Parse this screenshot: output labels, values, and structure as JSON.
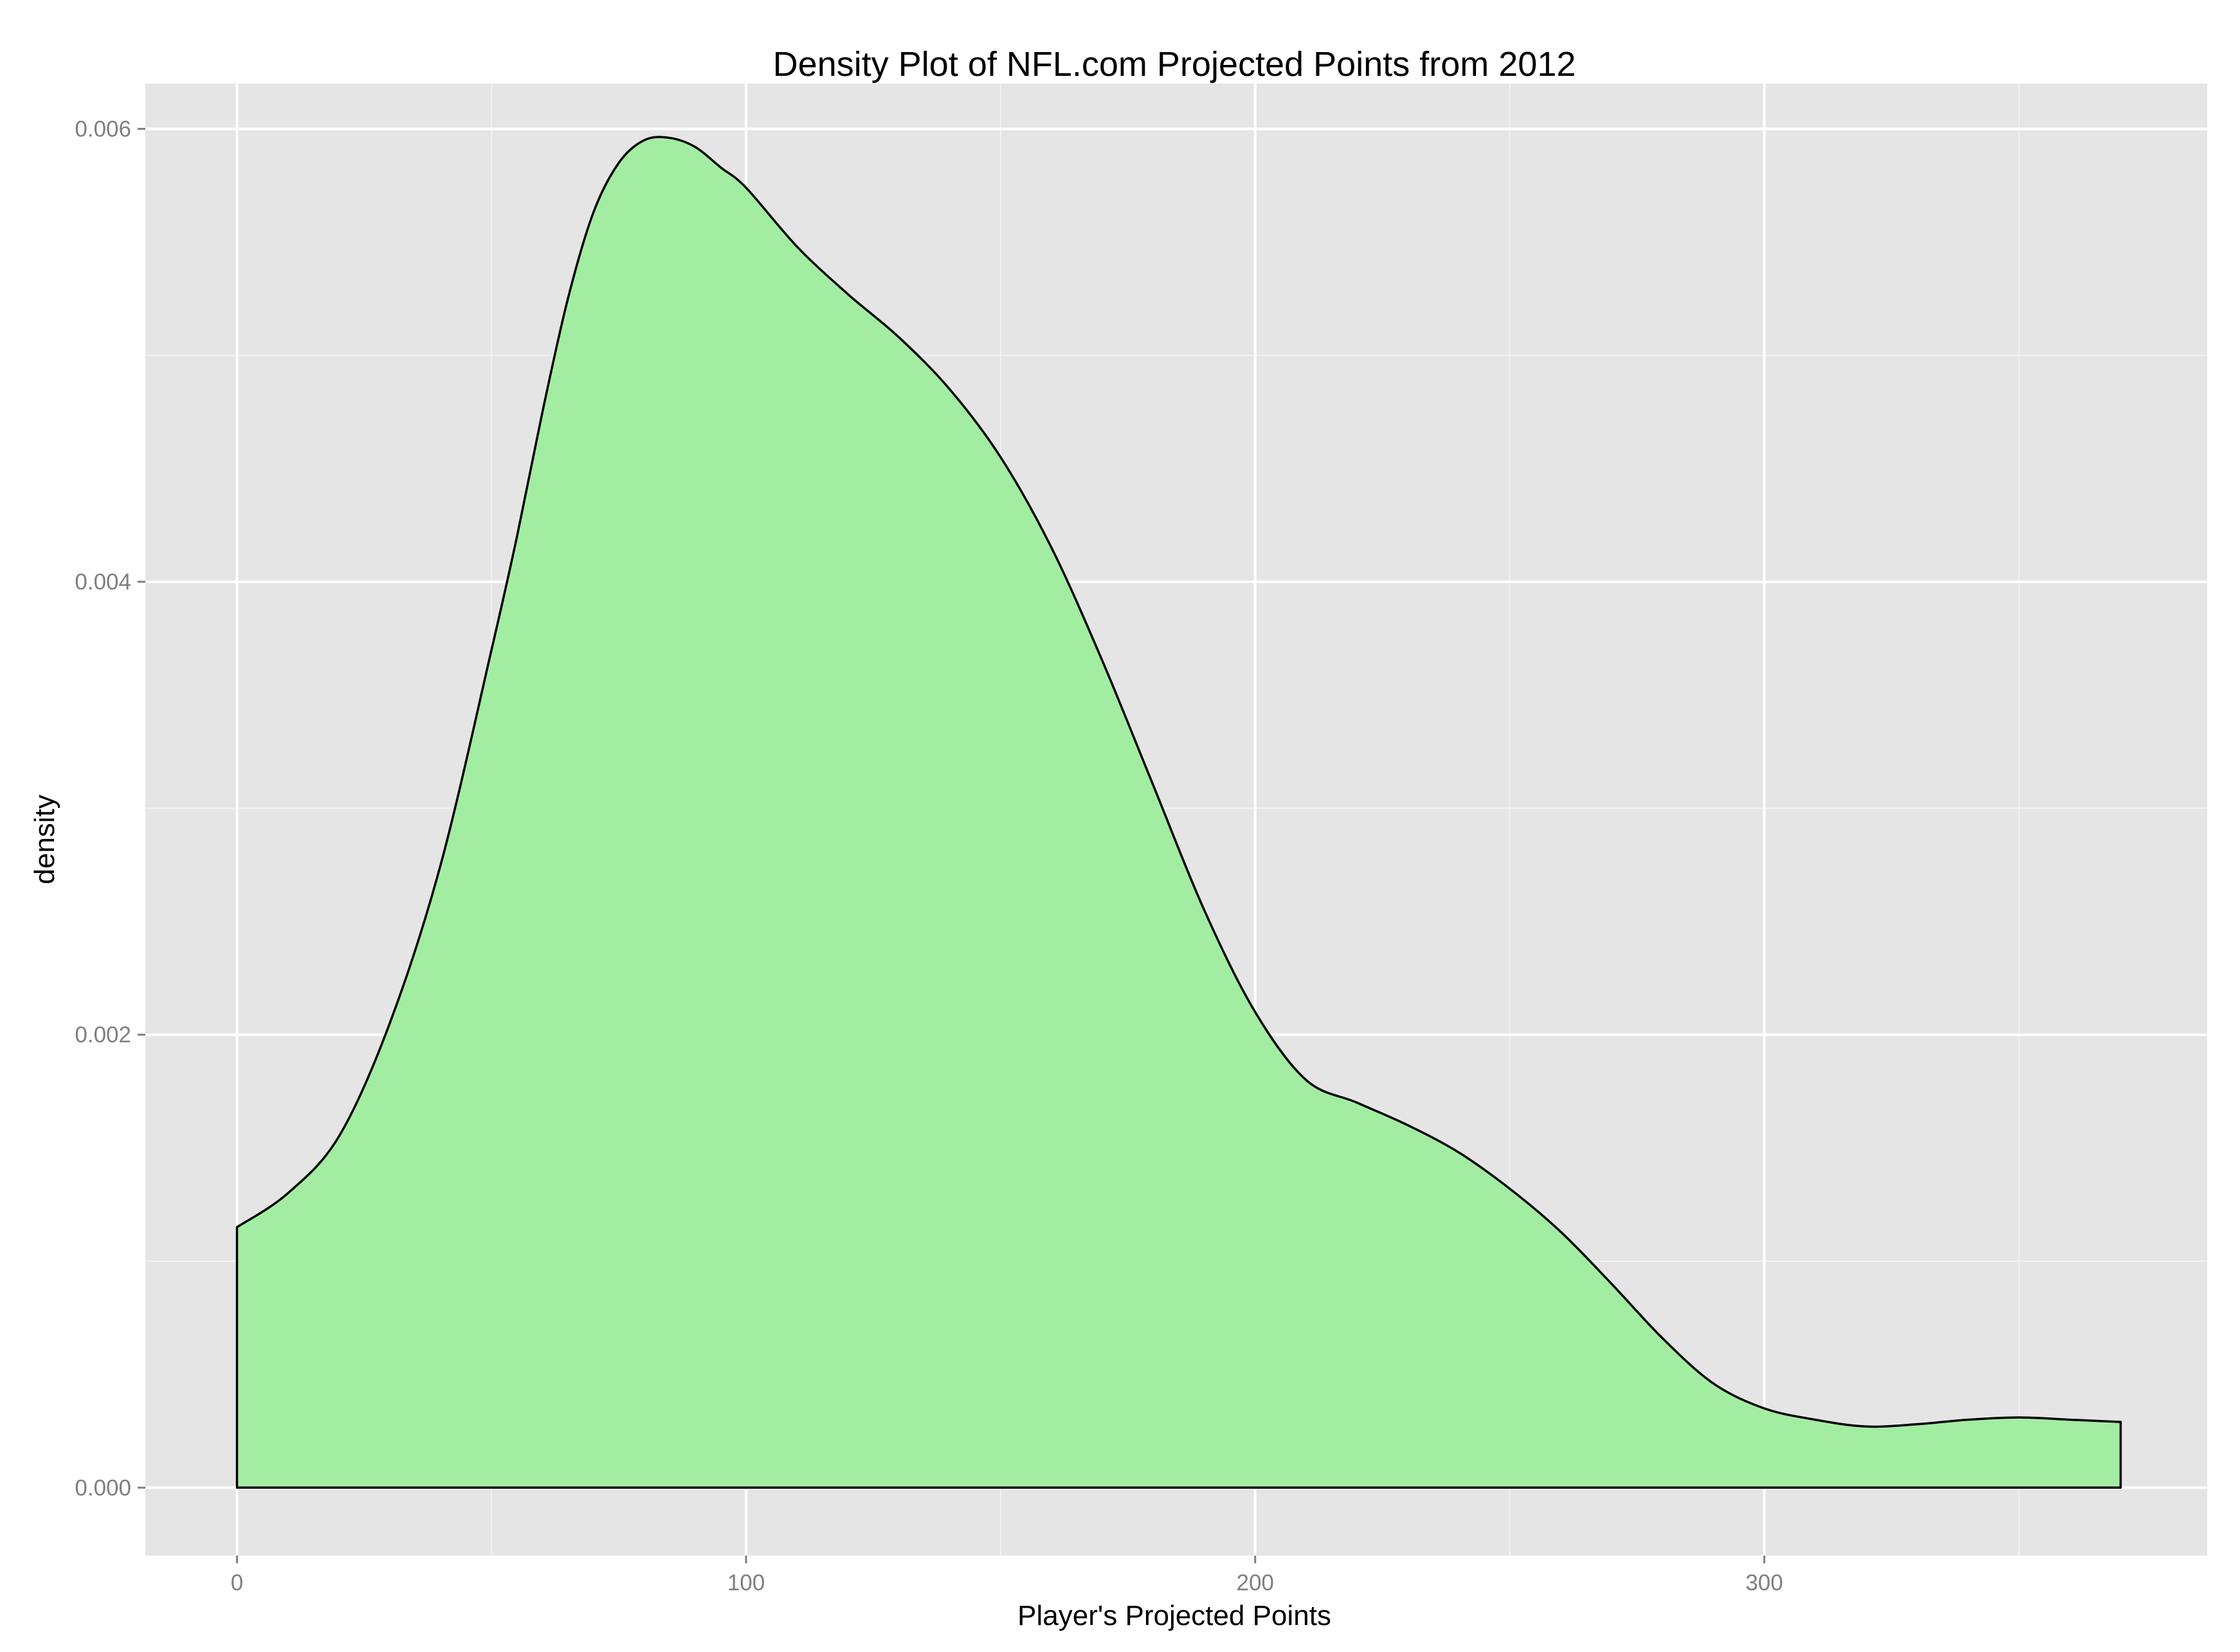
{
  "colors": {
    "panel_background": "#e5e5e5",
    "grid_major": "#ffffff",
    "grid_minor": "#f2f2f2",
    "density_fill": "#a3eda2",
    "density_outline": "#000000",
    "tick_label": "#7f7f7f",
    "tick_mark": "#7f7f7f"
  },
  "chart_data": {
    "type": "area",
    "title": "Density Plot of NFL.com Projected Points from 2012",
    "xlabel": "Player's Projected Points",
    "ylabel": "density",
    "xlim": [
      -18,
      387
    ],
    "ylim": [
      -0.0003,
      0.0062
    ],
    "x_ticks": [
      0,
      100,
      200,
      300
    ],
    "x_tick_labels": [
      "0",
      "100",
      "200",
      "300"
    ],
    "y_ticks": [
      0.0,
      0.002,
      0.004,
      0.006
    ],
    "y_tick_labels": [
      "0.000",
      "0.002",
      "0.004",
      "0.006"
    ],
    "grid": true,
    "legend": "none",
    "series": [
      {
        "x": [
          0,
          10,
          20,
          30,
          40,
          50,
          55,
          60,
          65,
          70,
          75,
          80,
          85,
          90,
          95,
          100,
          110,
          120,
          130,
          140,
          150,
          160,
          170,
          180,
          190,
          200,
          210,
          220,
          230,
          240,
          250,
          260,
          270,
          280,
          290,
          300,
          310,
          320,
          330,
          340,
          350,
          360,
          370
        ],
        "y": [
          0.00115,
          0.0013,
          0.00155,
          0.00205,
          0.00275,
          0.0037,
          0.0042,
          0.00475,
          0.00525,
          0.00563,
          0.00585,
          0.00595,
          0.00596,
          0.00592,
          0.00583,
          0.00574,
          0.00548,
          0.00527,
          0.00508,
          0.00485,
          0.00455,
          0.00415,
          0.00365,
          0.0031,
          0.00255,
          0.0021,
          0.0018,
          0.0017,
          0.0016,
          0.00148,
          0.00132,
          0.00113,
          0.0009,
          0.00066,
          0.00046,
          0.00035,
          0.0003,
          0.00027,
          0.00028,
          0.0003,
          0.00031,
          0.0003,
          0.00029
        ]
      }
    ]
  }
}
